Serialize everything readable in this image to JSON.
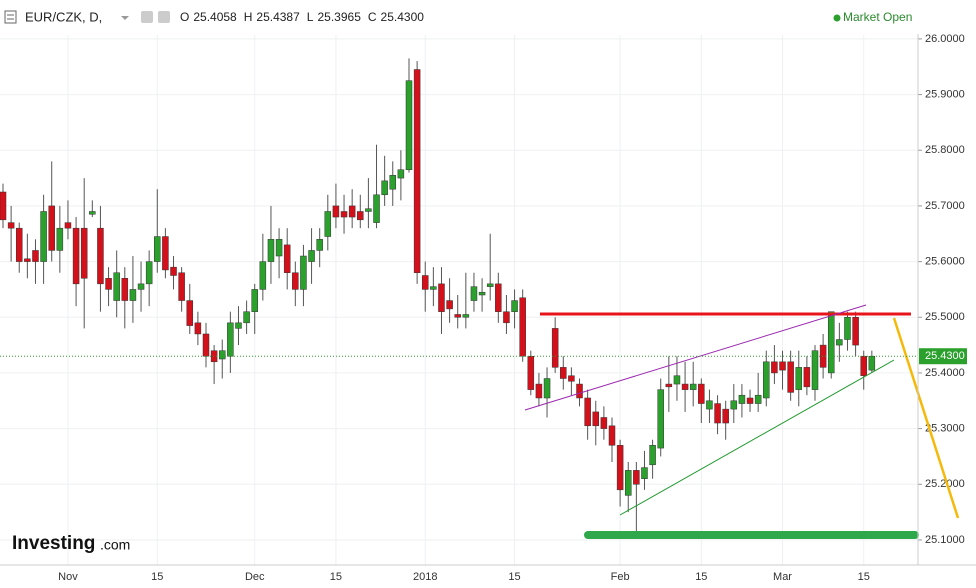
{
  "chart_data": {
    "type": "candlestick",
    "title": "EUR/CZK, D,",
    "ohlc_header": [
      {
        "label": "O",
        "value": "25.4058"
      },
      {
        "label": "H",
        "value": "25.4387"
      },
      {
        "label": "L",
        "value": "25.3965"
      },
      {
        "label": "C",
        "value": "25.4300"
      }
    ],
    "status": "Market Open",
    "brand": {
      "name": "Investing",
      "suffix": ".com"
    },
    "last_price": {
      "value": 25.43,
      "label": "25.4300"
    },
    "up_color": "#2ba02d",
    "down_color": "#d4101b",
    "grid": true,
    "ylim": [
      25.055,
      26.007
    ],
    "yticks": [
      {
        "value": 25.1,
        "label": "25.1000"
      },
      {
        "value": 25.2,
        "label": "25.2000"
      },
      {
        "value": 25.3,
        "label": "25.3000"
      },
      {
        "value": 25.4,
        "label": "25.4000"
      },
      {
        "value": 25.5,
        "label": "25.5000"
      },
      {
        "value": 25.6,
        "label": "25.6000"
      },
      {
        "value": 25.7,
        "label": "25.7000"
      },
      {
        "value": 25.8,
        "label": "25.8000"
      },
      {
        "value": 25.9,
        "label": "25.9000"
      },
      {
        "value": 26.0,
        "label": "26.0000"
      }
    ],
    "categories": [
      null,
      null,
      null,
      null,
      null,
      null,
      null,
      null,
      "Nov",
      null,
      null,
      null,
      null,
      null,
      null,
      null,
      null,
      null,
      null,
      "15",
      null,
      null,
      null,
      null,
      null,
      null,
      null,
      null,
      null,
      null,
      null,
      "Dec",
      null,
      null,
      null,
      null,
      null,
      null,
      null,
      null,
      null,
      "15",
      null,
      null,
      null,
      null,
      null,
      null,
      null,
      null,
      null,
      null,
      "2018",
      null,
      null,
      null,
      null,
      null,
      null,
      null,
      null,
      null,
      null,
      "15",
      null,
      null,
      null,
      null,
      null,
      null,
      null,
      null,
      null,
      null,
      null,
      null,
      "Feb",
      null,
      null,
      null,
      null,
      null,
      null,
      null,
      null,
      null,
      "15",
      null,
      null,
      null,
      null,
      null,
      null,
      null,
      null,
      null,
      "Mar",
      null,
      null,
      null,
      null,
      null,
      null,
      null,
      null,
      null,
      "15",
      null
    ],
    "open": [
      25.725,
      25.67,
      25.66,
      25.605,
      25.62,
      25.6,
      25.7,
      25.62,
      25.67,
      25.66,
      25.66,
      25.685,
      25.66,
      25.57,
      25.53,
      25.57,
      25.53,
      25.55,
      25.56,
      25.6,
      25.645,
      25.59,
      25.58,
      25.53,
      25.49,
      25.47,
      25.44,
      25.425,
      25.43,
      25.48,
      25.49,
      25.51,
      25.55,
      25.6,
      25.61,
      25.63,
      25.58,
      25.55,
      25.6,
      25.62,
      25.645,
      25.7,
      25.69,
      25.7,
      25.69,
      25.69,
      25.67,
      25.72,
      25.73,
      25.75,
      25.765,
      25.945,
      25.575,
      25.55,
      25.56,
      25.53,
      25.505,
      25.5,
      25.53,
      25.54,
      25.555,
      25.56,
      25.51,
      25.51,
      25.535,
      25.43,
      25.38,
      25.355,
      25.48,
      25.41,
      25.395,
      25.38,
      25.355,
      25.33,
      25.32,
      25.305,
      25.27,
      25.18,
      25.225,
      25.21,
      25.235,
      25.265,
      25.38,
      25.38,
      25.38,
      25.37,
      25.38,
      25.335,
      25.345,
      25.335,
      25.335,
      25.345,
      25.355,
      25.345,
      25.355,
      25.42,
      25.42,
      25.42,
      25.37,
      25.41,
      25.37,
      25.45,
      25.4,
      25.45,
      25.46,
      25.5,
      25.43,
      25.405
    ],
    "high": [
      25.74,
      25.7,
      25.67,
      25.65,
      25.64,
      25.72,
      25.78,
      25.7,
      25.71,
      25.68,
      25.75,
      25.71,
      25.7,
      25.59,
      25.62,
      25.59,
      25.61,
      25.6,
      25.62,
      25.73,
      25.66,
      25.61,
      25.59,
      25.56,
      25.51,
      25.49,
      25.45,
      25.46,
      25.51,
      25.52,
      25.53,
      25.56,
      25.65,
      25.7,
      25.66,
      25.66,
      25.6,
      25.63,
      25.66,
      25.66,
      25.72,
      25.74,
      25.72,
      25.73,
      25.72,
      25.75,
      25.81,
      25.79,
      25.78,
      25.8,
      25.965,
      25.96,
      25.6,
      25.59,
      25.59,
      25.57,
      25.54,
      25.58,
      25.58,
      25.57,
      25.65,
      25.58,
      25.54,
      25.55,
      25.55,
      25.44,
      25.4,
      25.41,
      25.5,
      25.43,
      25.41,
      25.39,
      25.37,
      25.35,
      25.34,
      25.32,
      25.28,
      25.24,
      25.24,
      25.26,
      25.28,
      25.39,
      25.43,
      25.43,
      25.42,
      25.42,
      25.39,
      25.37,
      25.36,
      25.35,
      25.38,
      25.38,
      25.37,
      25.4,
      25.44,
      25.45,
      25.44,
      25.44,
      25.44,
      25.43,
      25.45,
      25.47,
      25.51,
      25.49,
      25.51,
      25.51,
      25.44,
      25.44
    ],
    "low": [
      25.66,
      25.6,
      25.58,
      25.57,
      25.56,
      25.56,
      25.6,
      25.58,
      25.64,
      25.52,
      25.48,
      25.68,
      25.51,
      25.52,
      25.5,
      25.48,
      25.49,
      25.51,
      25.52,
      25.58,
      25.57,
      25.55,
      25.51,
      25.47,
      25.45,
      25.41,
      25.38,
      25.39,
      25.4,
      25.45,
      25.47,
      25.47,
      25.53,
      25.56,
      25.57,
      25.55,
      25.52,
      25.52,
      25.56,
      25.59,
      25.62,
      25.66,
      25.65,
      25.66,
      25.66,
      25.66,
      25.66,
      25.7,
      25.7,
      25.71,
      25.76,
      25.56,
      25.51,
      25.52,
      25.47,
      25.49,
      25.48,
      25.48,
      25.51,
      25.51,
      25.53,
      25.49,
      25.47,
      25.48,
      25.42,
      25.36,
      25.34,
      25.32,
      25.4,
      25.37,
      25.36,
      25.34,
      25.28,
      25.27,
      25.28,
      25.24,
      25.16,
      25.15,
      25.11,
      25.19,
      25.21,
      25.25,
      25.33,
      25.35,
      25.33,
      25.34,
      25.31,
      25.31,
      25.29,
      25.28,
      25.31,
      25.32,
      25.33,
      25.33,
      25.34,
      25.38,
      25.37,
      25.35,
      25.34,
      25.36,
      25.35,
      25.39,
      25.39,
      25.42,
      25.44,
      25.43,
      25.37,
      25.4
    ],
    "close": [
      25.675,
      25.66,
      25.6,
      25.6,
      25.6,
      25.69,
      25.62,
      25.66,
      25.66,
      25.56,
      25.57,
      25.69,
      25.56,
      25.55,
      25.58,
      25.53,
      25.55,
      25.56,
      25.6,
      25.645,
      25.585,
      25.575,
      25.53,
      25.485,
      25.47,
      25.43,
      25.42,
      25.44,
      25.49,
      25.49,
      25.51,
      25.55,
      25.6,
      25.64,
      25.64,
      25.58,
      25.55,
      25.61,
      25.62,
      25.64,
      25.69,
      25.68,
      25.68,
      25.68,
      25.675,
      25.695,
      25.72,
      25.745,
      25.755,
      25.765,
      25.925,
      25.58,
      25.55,
      25.555,
      25.51,
      25.515,
      25.5,
      25.505,
      25.555,
      25.545,
      25.56,
      25.51,
      25.49,
      25.53,
      25.43,
      25.37,
      25.355,
      25.39,
      25.41,
      25.39,
      25.385,
      25.355,
      25.305,
      25.305,
      25.3,
      25.27,
      25.19,
      25.225,
      25.2,
      25.23,
      25.27,
      25.37,
      25.375,
      25.395,
      25.37,
      25.38,
      25.345,
      25.35,
      25.31,
      25.31,
      25.35,
      25.36,
      25.345,
      25.36,
      25.42,
      25.4,
      25.405,
      25.365,
      25.41,
      25.375,
      25.44,
      25.41,
      25.51,
      25.46,
      25.5,
      25.45,
      25.395,
      25.43
    ]
  }
}
